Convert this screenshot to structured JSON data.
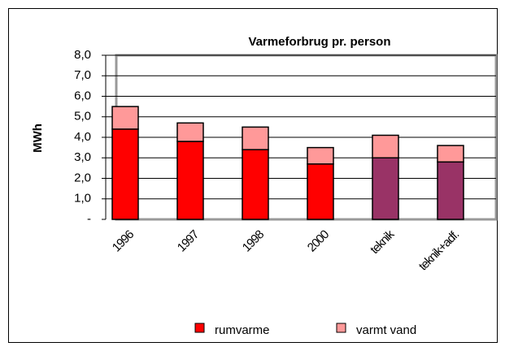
{
  "chart_data": {
    "type": "stacked_bar",
    "title": "Varmeforbrug pr. person",
    "y_label": "MWh",
    "categories": [
      "1996",
      "1997",
      "1998",
      "2000",
      "teknik",
      "teknik+adf."
    ],
    "series": [
      {
        "name": "rumvarme",
        "color": "#ff0000",
        "point_colors": [
          "#ff0000",
          "#ff0000",
          "#ff0000",
          "#ff0000",
          "#993366",
          "#993366"
        ],
        "values": [
          4.4,
          3.8,
          3.4,
          2.7,
          3.0,
          2.8
        ]
      },
      {
        "name": "varmt vand",
        "color": "#ff9999",
        "values": [
          1.1,
          0.9,
          1.1,
          0.8,
          1.1,
          0.8
        ]
      }
    ],
    "ylim": [
      0,
      8
    ],
    "yticks": [
      {
        "value": 0,
        "label": "-"
      },
      {
        "value": 1,
        "label": "1,0"
      },
      {
        "value": 2,
        "label": "2,0"
      },
      {
        "value": 3,
        "label": "3,0"
      },
      {
        "value": 4,
        "label": "4,0"
      },
      {
        "value": 5,
        "label": "5,0"
      },
      {
        "value": 6,
        "label": "6,0"
      },
      {
        "value": 7,
        "label": "7,0"
      },
      {
        "value": 8,
        "label": "8,0"
      }
    ],
    "grid": true,
    "legend": "bottom"
  }
}
